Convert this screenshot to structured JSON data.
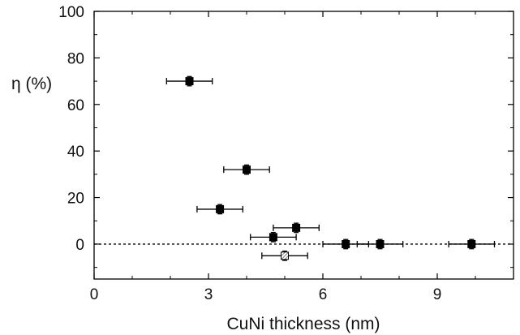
{
  "chart_data": {
    "type": "scatter",
    "xlabel": "CuNi thickness (nm)",
    "ylabel": "η (%)",
    "xlim": [
      0,
      11
    ],
    "ylim": [
      -15,
      100
    ],
    "x_ticks": [
      0,
      3,
      6,
      9
    ],
    "y_ticks": [
      0,
      20,
      40,
      60,
      80,
      100
    ],
    "grid": false,
    "reference_line": {
      "y": 0,
      "style": "dotted"
    },
    "series": [
      {
        "marker": "filled-square",
        "color": "#000000",
        "points": [
          {
            "x": 2.5,
            "y": 70,
            "x_err": 0.6,
            "y_err": 2
          },
          {
            "x": 4.0,
            "y": 32,
            "x_err": 0.6,
            "y_err": 2
          },
          {
            "x": 3.3,
            "y": 15,
            "x_err": 0.6,
            "y_err": 2
          },
          {
            "x": 4.7,
            "y": 3,
            "x_err": 0.6,
            "y_err": 2
          },
          {
            "x": 5.3,
            "y": 7,
            "x_err": 0.6,
            "y_err": 2
          },
          {
            "x": 6.6,
            "y": 0,
            "x_err": 0.6,
            "y_err": 2
          },
          {
            "x": 7.5,
            "y": 0,
            "x_err": 0.6,
            "y_err": 2
          },
          {
            "x": 9.9,
            "y": 0,
            "x_err": 0.6,
            "y_err": 2
          }
        ]
      },
      {
        "marker": "hatched-square",
        "color": "#000000",
        "points": [
          {
            "x": 5.0,
            "y": -5,
            "x_err": 0.6,
            "y_err": 2
          }
        ]
      }
    ]
  }
}
